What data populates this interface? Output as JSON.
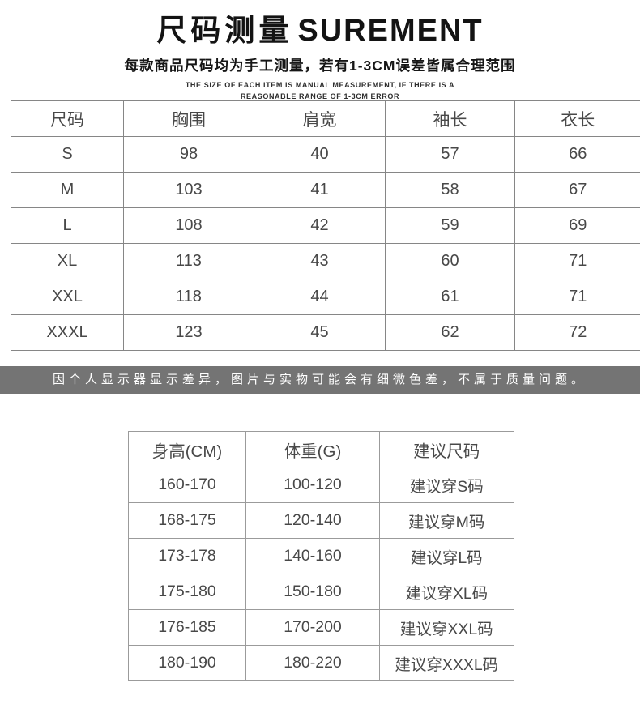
{
  "header": {
    "title_cn": "尺码测量",
    "title_en": "SUREMENT",
    "subtitle": "每款商品尺码均为手工测量，若有1-3CM误差皆属合理范围",
    "note_line1": "THE SIZE OF EACH ITEM IS MANUAL MEASUREMENT, IF THERE IS A",
    "note_line2": "REASONABLE RANGE OF 1-3CM ERROR"
  },
  "size_table": {
    "headers": [
      "尺码",
      "胸围",
      "肩宽",
      "袖长",
      "衣长"
    ],
    "rows": [
      [
        "S",
        "98",
        "40",
        "57",
        "66"
      ],
      [
        "M",
        "103",
        "41",
        "58",
        "67"
      ],
      [
        "L",
        "108",
        "42",
        "59",
        "69"
      ],
      [
        "XL",
        "113",
        "43",
        "60",
        "71"
      ],
      [
        "XXL",
        "118",
        "44",
        "61",
        "71"
      ],
      [
        "XXXL",
        "123",
        "45",
        "62",
        "72"
      ]
    ]
  },
  "notice_banner": {
    "text": "因个人显示器显示差异，图片与实物可能会有细微色差，不属于质量问题。",
    "bg_color": "#747474",
    "text_color": "#ffffff"
  },
  "recommend_table": {
    "headers": [
      "身高(CM)",
      "体重(G)",
      "建议尺码"
    ],
    "rows": [
      [
        "160-170",
        "100-120",
        "建议穿S码"
      ],
      [
        "168-175",
        "120-140",
        "建议穿M码"
      ],
      [
        "173-178",
        "140-160",
        "建议穿L码"
      ],
      [
        "175-180",
        "150-180",
        "建议穿XL码"
      ],
      [
        "176-185",
        "170-200",
        "建议穿XXL码"
      ],
      [
        "180-190",
        "180-220",
        "建议穿XXXL码"
      ]
    ]
  }
}
